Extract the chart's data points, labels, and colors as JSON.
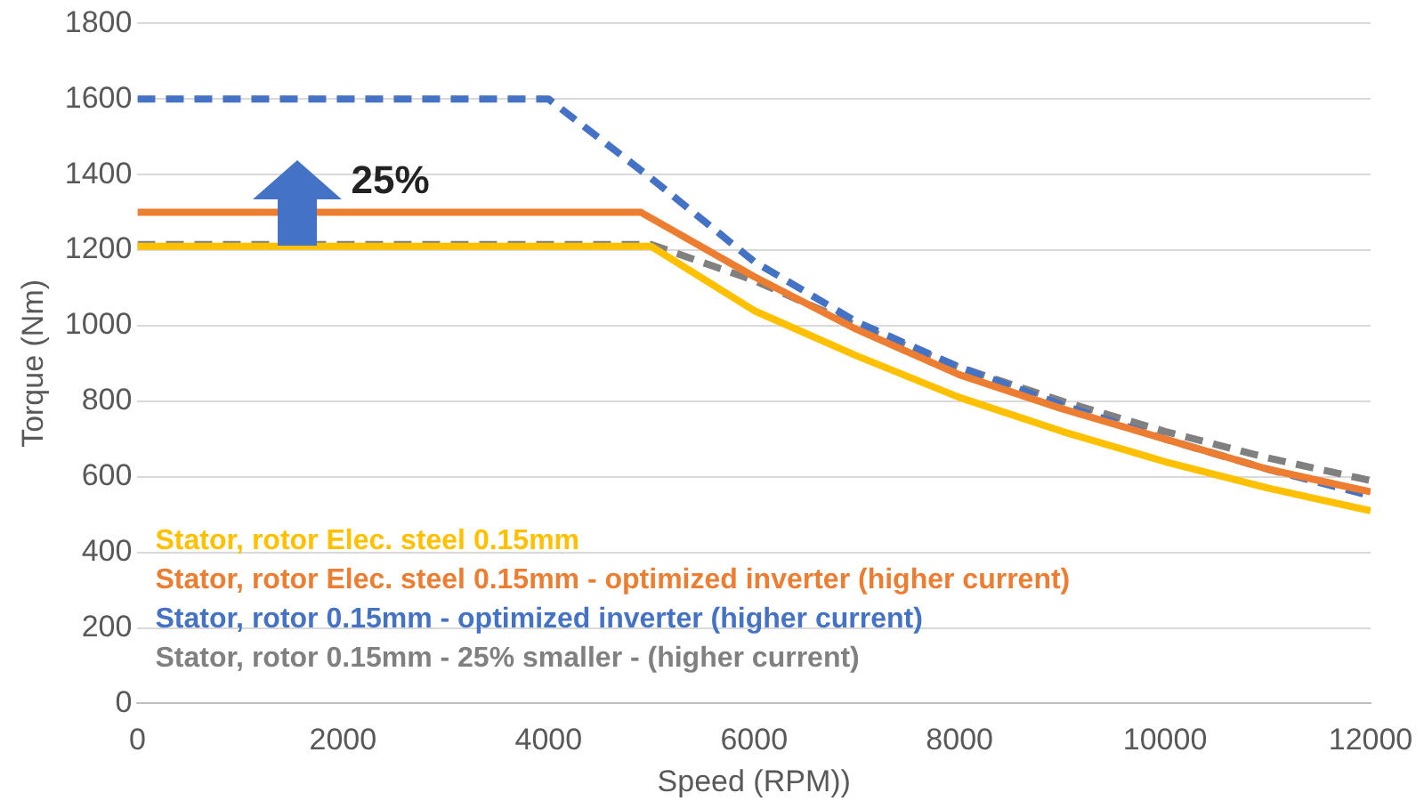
{
  "chart_data": {
    "type": "line",
    "xlabel": "Speed (RPM))",
    "ylabel": "Torque (Nm)",
    "xlim": [
      0,
      12000
    ],
    "xticks": [
      0,
      2000,
      4000,
      6000,
      8000,
      10000,
      12000
    ],
    "ylim": [
      0,
      1800
    ],
    "yticks": [
      0,
      200,
      400,
      600,
      800,
      1000,
      1200,
      1400,
      1600,
      1800
    ],
    "grid": "y",
    "legend": "bottom left",
    "marker": "none",
    "annotations": [
      "25%"
    ],
    "series": [
      {
        "name": "Stator, rotor Elec. steel 0.15mm",
        "color": "#ffc000",
        "line_style": "solid",
        "x": [
          0,
          5000,
          6000,
          7000,
          8000,
          9000,
          10000,
          11000,
          12000
        ],
        "values": [
          1210,
          1210,
          1040,
          920,
          810,
          720,
          640,
          570,
          510
        ]
      },
      {
        "name": "Stator, rotor Elec. steel 0.15mm - optimized inverter (higher current)",
        "color": "#ed7d31",
        "line_style": "solid",
        "x": [
          0,
          4900,
          6000,
          7000,
          8000,
          9000,
          10000,
          11000,
          12000
        ],
        "values": [
          1300,
          1300,
          1130,
          990,
          870,
          780,
          700,
          620,
          560
        ]
      },
      {
        "name": "Stator, rotor 0.15mm - optimized inverter (higher current)",
        "color": "#4472c4",
        "line_style": "dashed",
        "x": [
          0,
          4000,
          5000,
          6000,
          7000,
          8000,
          9000,
          10000,
          11000,
          12000
        ],
        "values": [
          1600,
          1600,
          1390,
          1170,
          1010,
          890,
          790,
          700,
          620,
          550
        ]
      },
      {
        "name": "Stator, rotor 0.15mm - 25% smaller - (higher current)",
        "color": "#808080",
        "line_style": "dashed",
        "x": [
          0,
          5000,
          6000,
          7000,
          8000,
          9000,
          10000,
          11000,
          12000
        ],
        "values": [
          1215,
          1215,
          1120,
          1000,
          890,
          800,
          720,
          650,
          590
        ]
      }
    ]
  }
}
